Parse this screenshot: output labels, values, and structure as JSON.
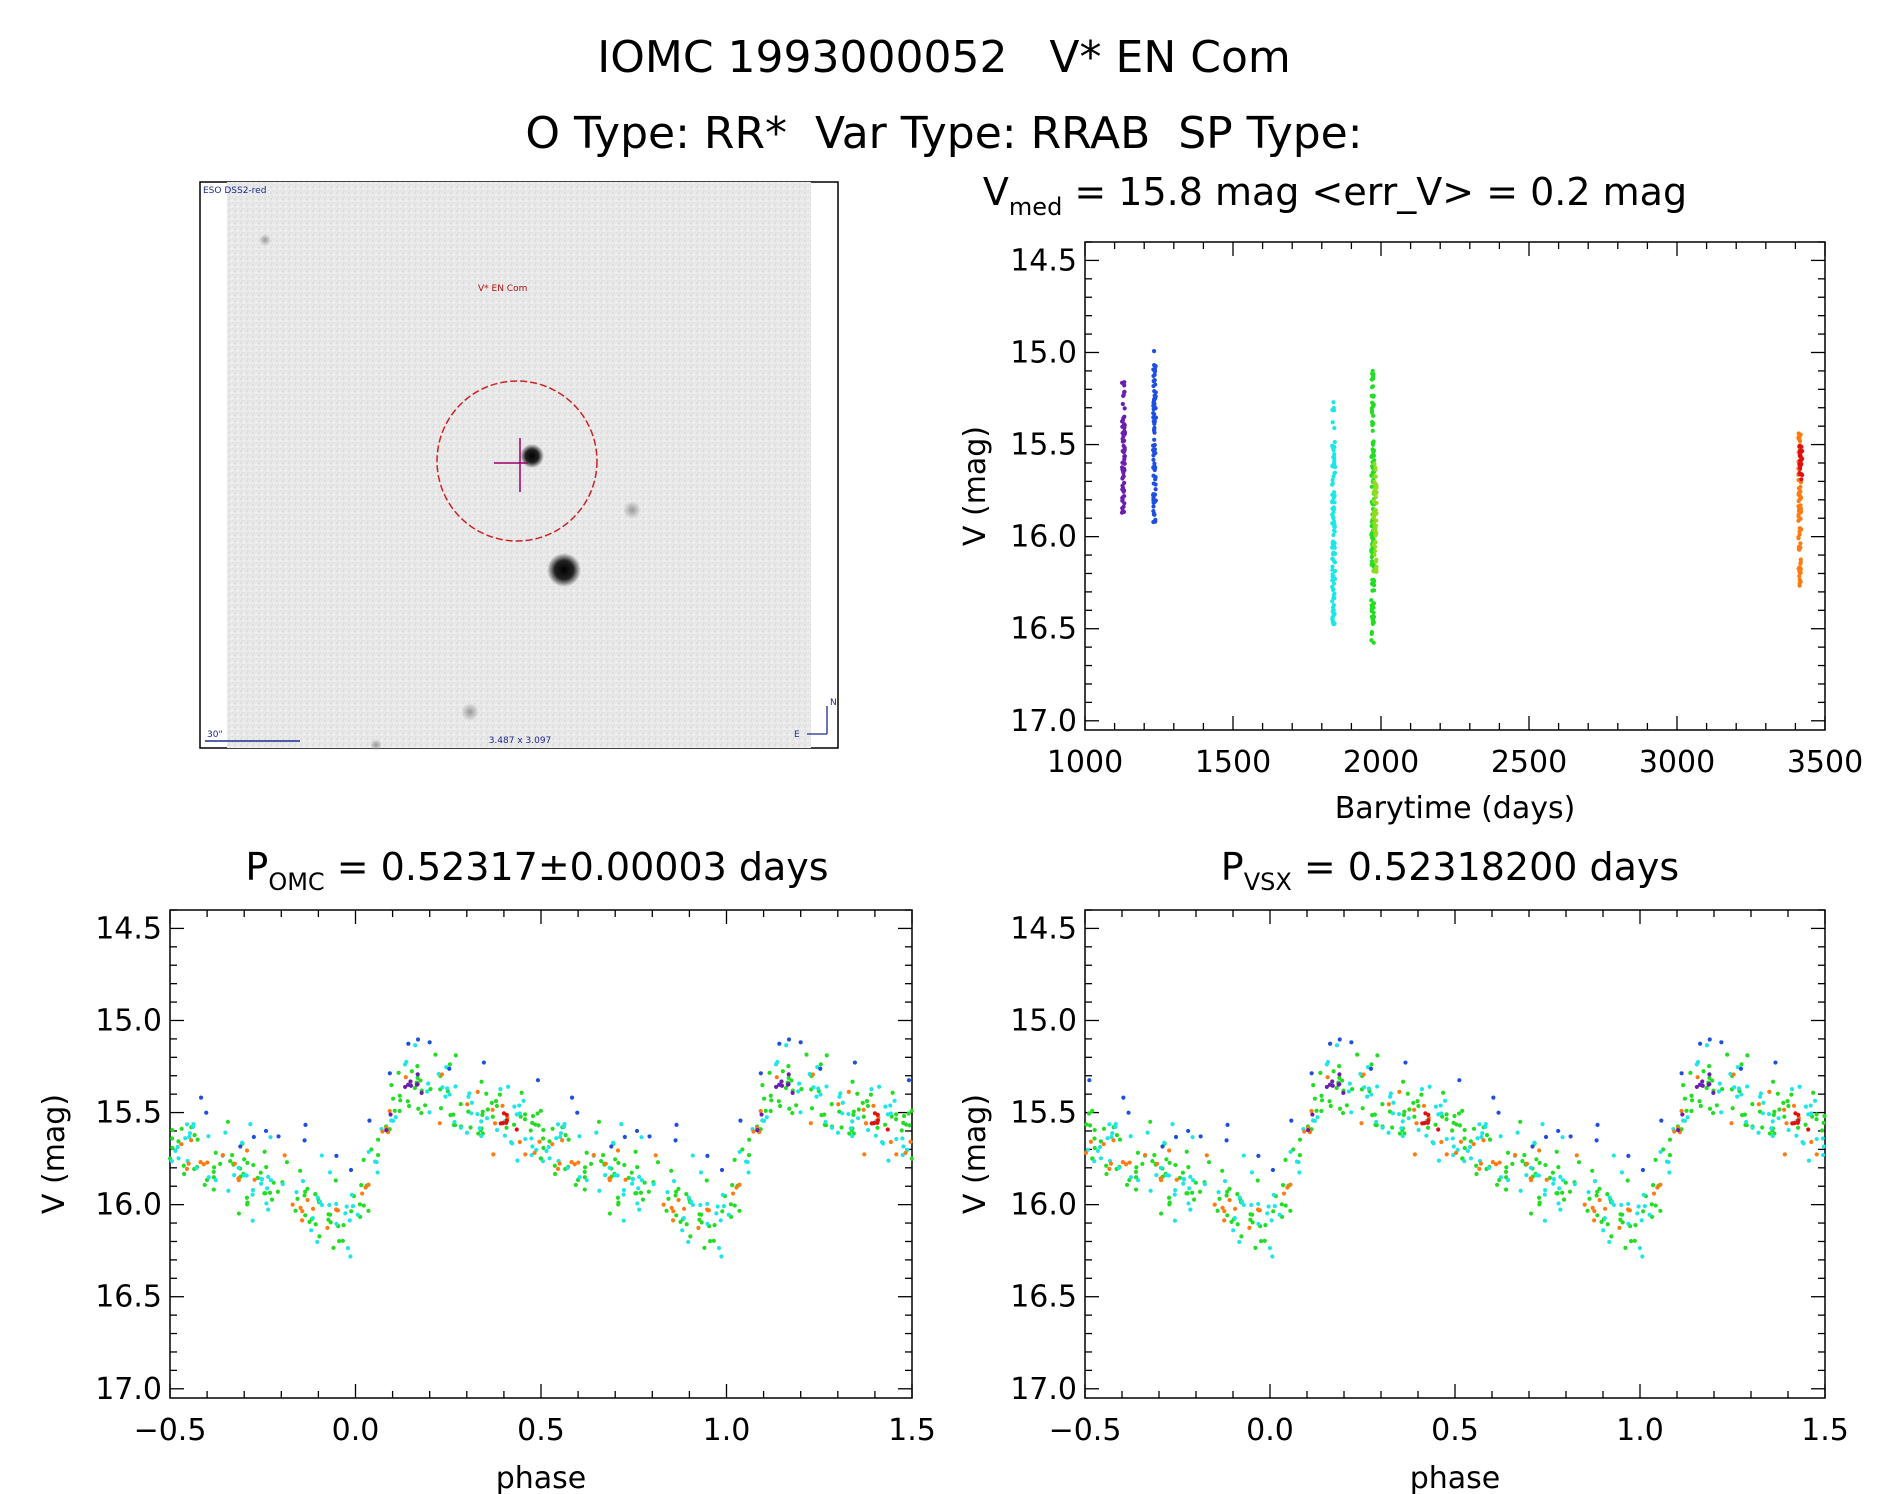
{
  "header": {
    "title": "IOMC 1993000052   V* EN Com",
    "subtitle": "O Type: RR*  Var Type: RRAB  SP Type:"
  },
  "finder": {
    "survey": "ESO DSS2-red",
    "target": "V* EN Com",
    "scale": "30\"",
    "fov": "3.487 x 3.097",
    "north": "N",
    "east": "E"
  },
  "colors": {
    "violet": "#6a1fb0",
    "blue": "#1f4fe0",
    "cyan": "#1fe6e6",
    "green": "#22dd22",
    "lime": "#8fdc20",
    "orange": "#ff7a10",
    "red": "#e01010",
    "circle": "#cc2222",
    "cross": "#990066",
    "finder_text": "#1a2a90"
  },
  "chart_data": [
    {
      "type": "scatter",
      "title": {
        "pre": "V",
        "sub": "med",
        "post": " = 15.8 mag <err_V> = 0.2 mag"
      },
      "xlabel": "Barytime (days)",
      "ylabel": "V (mag)",
      "xlim": [
        1000,
        3500
      ],
      "ylim": [
        17.0,
        14.5
      ],
      "y_inverted": true,
      "xticks": [
        1000,
        1500,
        2000,
        2500,
        3000,
        3500
      ],
      "yticks": [
        14.5,
        15.0,
        15.5,
        16.0,
        16.5,
        17.0
      ],
      "series": [
        {
          "color_key": "violet",
          "x": 1130,
          "v_min": 15.15,
          "v_max": 15.87
        },
        {
          "color_key": "blue",
          "x": 1235,
          "v_min": 14.98,
          "v_max": 15.93
        },
        {
          "color_key": "cyan",
          "x": 1840,
          "v_min": 15.27,
          "v_max": 16.48
        },
        {
          "color_key": "green",
          "x": 1972,
          "v_min": 15.1,
          "v_max": 16.6
        },
        {
          "color_key": "lime",
          "x": 1980,
          "v_min": 15.6,
          "v_max": 16.2
        },
        {
          "color_key": "orange",
          "x": 3415,
          "v_min": 15.43,
          "v_max": 16.28
        },
        {
          "color_key": "red",
          "x": 3418,
          "v_min": 15.5,
          "v_max": 15.7
        }
      ]
    },
    {
      "type": "scatter",
      "title": {
        "pre": "P",
        "sub": "OMC",
        "post": " = 0.52317±0.00003 days"
      },
      "xlabel": "phase",
      "ylabel": "V (mag)",
      "xlim": [
        -0.5,
        1.5
      ],
      "ylim": [
        17.0,
        14.5
      ],
      "y_inverted": true,
      "xticks": [
        -0.5,
        0.0,
        0.5,
        1.0,
        1.5
      ],
      "yticks": [
        14.5,
        15.0,
        15.5,
        16.0,
        16.5,
        17.0
      ],
      "period_days": 0.52317,
      "phase_shift": 0.0
    },
    {
      "type": "scatter",
      "title": {
        "pre": "P",
        "sub": "VSX",
        "post": " = 0.52318200 days"
      },
      "xlabel": "phase",
      "ylabel": "V (mag)",
      "xlim": [
        -0.5,
        1.5
      ],
      "ylim": [
        17.0,
        14.5
      ],
      "y_inverted": true,
      "xticks": [
        -0.5,
        0.0,
        0.5,
        1.0,
        1.5
      ],
      "yticks": [
        14.5,
        15.0,
        15.5,
        16.0,
        16.5,
        17.0
      ],
      "period_days": 0.523182,
      "phase_shift": 0.02
    }
  ]
}
